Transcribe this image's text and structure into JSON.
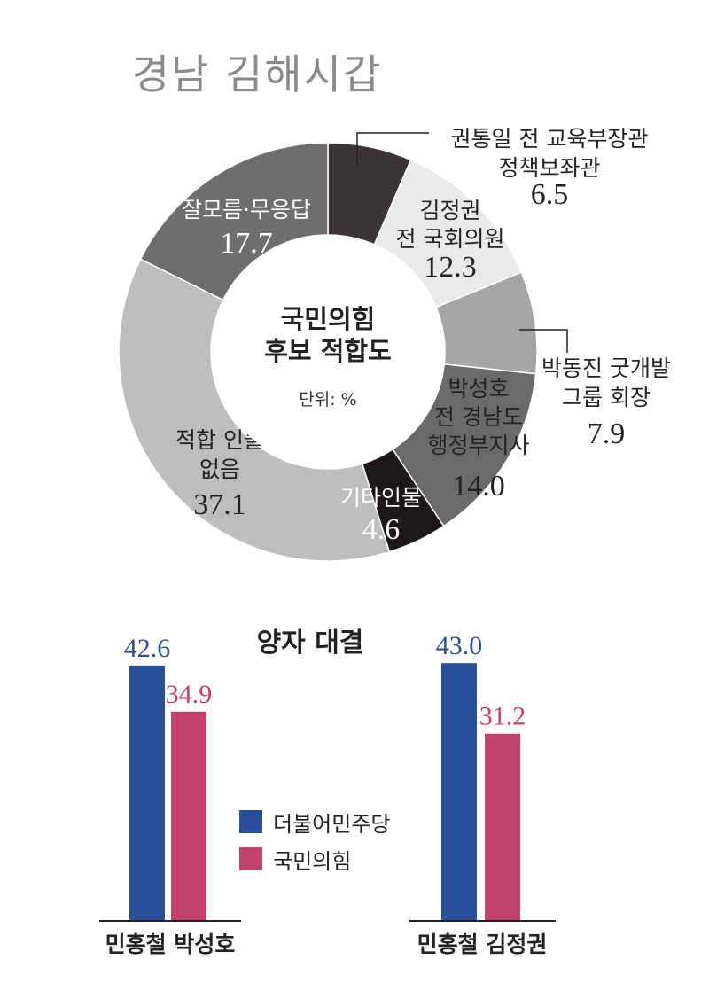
{
  "title": "경남 김해시갑",
  "colors": {
    "democratic": "#2a4e99",
    "ppp": "#c3426b"
  },
  "chart_data": [
    {
      "type": "pie",
      "title": "국민의힘 후보 적합도",
      "center_label_lines": [
        "국민의힘",
        "후보 적합도"
      ],
      "unit_label": "단위: %",
      "slices": [
        {
          "label_lines": [
            "권통일 전 교육부장관",
            "정책보좌관"
          ],
          "value": 6.5,
          "display": "6.5",
          "color": "#3a3536"
        },
        {
          "label_lines": [
            "김정권",
            "전 국회의원"
          ],
          "value": 12.3,
          "display": "12.3",
          "color": "#e9e9e9"
        },
        {
          "label_lines": [
            "박동진 굿개발",
            "그룹 회장"
          ],
          "value": 7.9,
          "display": "7.9",
          "color": "#a5a5a5"
        },
        {
          "label_lines": [
            "박성호",
            "전 경남도",
            "행정부지사"
          ],
          "value": 14.0,
          "display": "14.0",
          "color": "#6a6a6a"
        },
        {
          "label_lines": [
            "기타인물"
          ],
          "value": 4.6,
          "display": "4.6",
          "color": "#1c1718"
        },
        {
          "label_lines": [
            "적합 인물",
            "없음"
          ],
          "value": 37.1,
          "display": "37.1",
          "color": "#bdbdbd"
        },
        {
          "label_lines": [
            "잘모름·무응답"
          ],
          "value": 17.7,
          "display": "17.7",
          "color": "#6e6e6e"
        }
      ]
    },
    {
      "type": "bar",
      "title": "양자 대결",
      "categories": [
        "민홍철 박성호",
        "민홍철 김정권"
      ],
      "series": [
        {
          "name": "더불어민주당",
          "values": [
            42.6,
            43.0
          ],
          "display": [
            "42.6",
            "43.0"
          ]
        },
        {
          "name": "국민의힘",
          "values": [
            34.9,
            31.2
          ],
          "display": [
            "34.9",
            "31.2"
          ]
        }
      ],
      "ylim": [
        0,
        50
      ]
    }
  ]
}
